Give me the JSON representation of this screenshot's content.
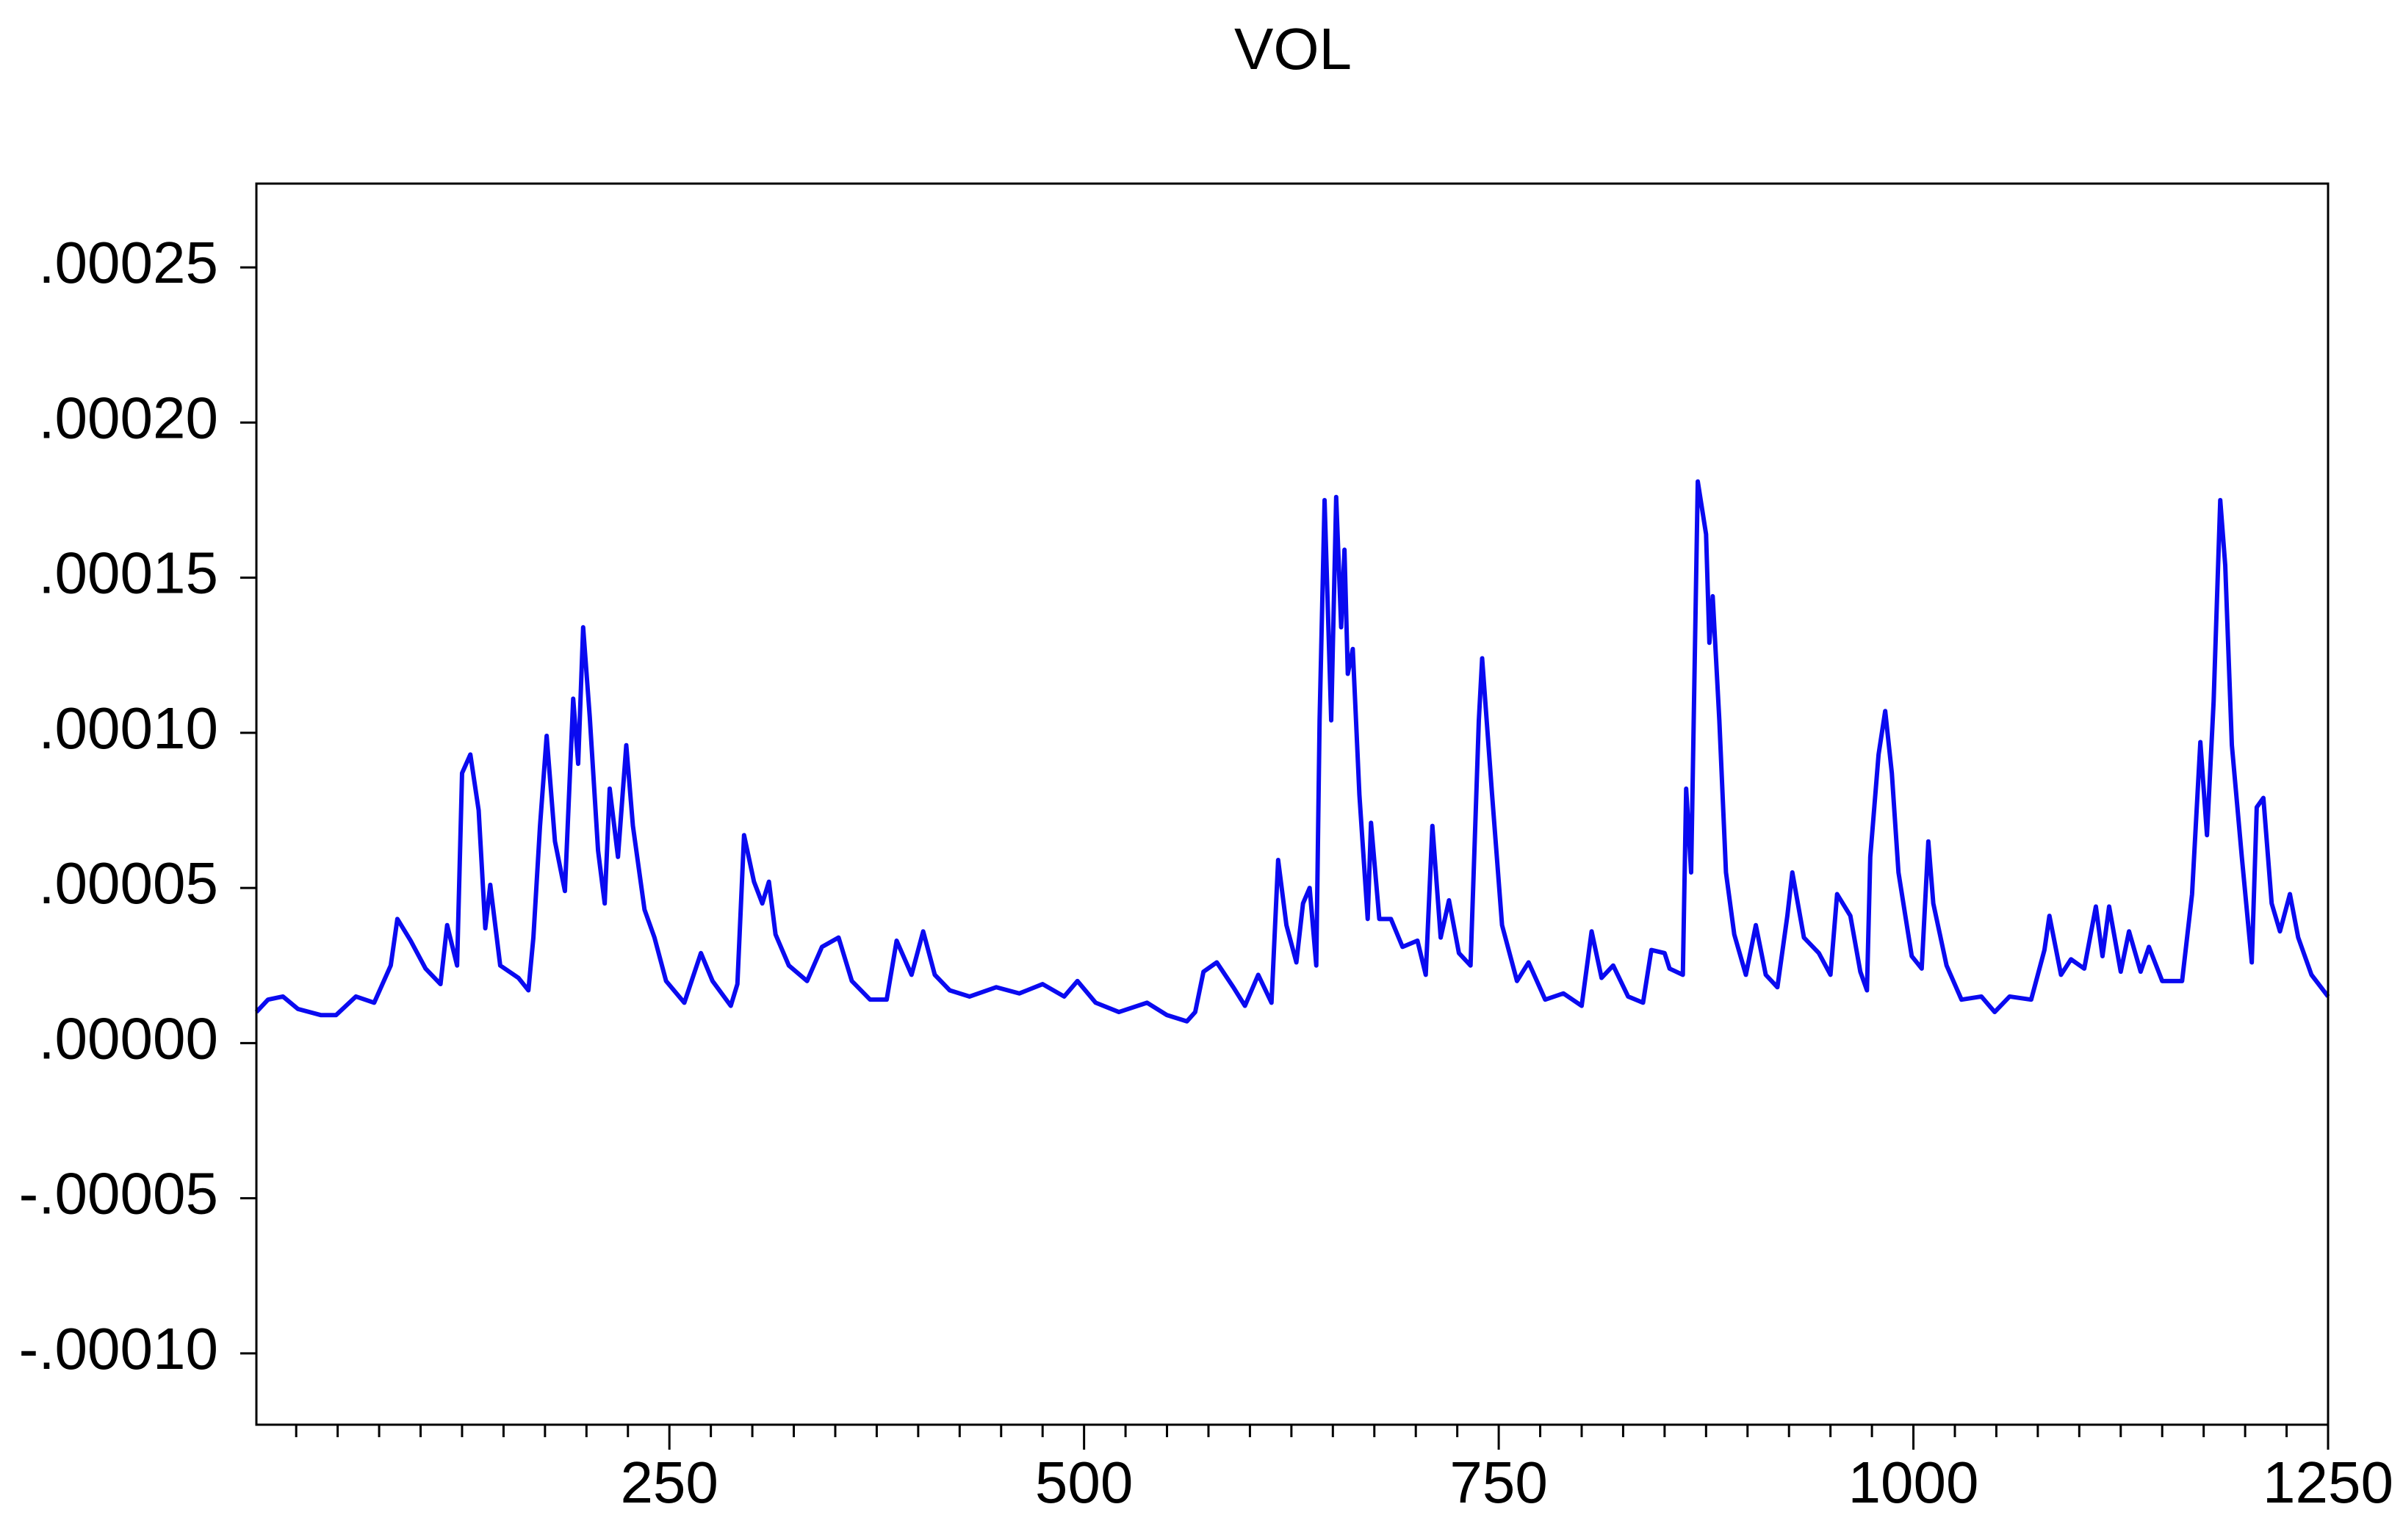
{
  "chart_data": {
    "type": "line",
    "title": "VOL",
    "x": [
      1,
      8,
      17,
      26,
      40,
      49,
      61,
      72,
      82,
      86,
      94,
      103,
      112,
      116,
      122,
      125,
      130,
      135,
      139,
      142,
      148,
      159,
      165,
      168,
      172,
      176,
      181,
      187,
      192,
      195,
      198,
      202,
      207,
      211,
      214,
      219,
      224,
      228,
      235,
      241,
      248,
      259,
      269,
      276,
      287,
      291,
      295,
      301,
      306,
      310,
      314,
      322,
      333,
      342,
      352,
      360,
      371,
      381,
      387,
      396,
      403,
      410,
      419,
      431,
      447,
      461,
      475,
      488,
      496,
      507,
      521,
      538,
      550,
      562,
      567,
      572,
      580,
      590,
      597,
      605,
      613,
      617,
      622,
      628,
      632,
      636,
      640,
      642,
      645,
      649,
      652,
      655,
      657,
      659,
      662,
      666,
      671,
      673,
      678,
      685,
      692,
      701,
      706,
      710,
      715,
      720,
      726,
      733,
      738,
      740,
      746,
      752,
      761,
      768,
      778,
      789,
      800,
      806,
      812,
      819,
      828,
      837,
      842,
      850,
      853,
      861,
      863,
      866,
      870,
      875,
      877,
      879,
      883,
      887,
      892,
      899,
      905,
      911,
      918,
      924,
      927,
      934,
      943,
      950,
      954,
      962,
      968,
      972,
      974,
      979,
      983,
      987,
      991,
      999,
      1005,
      1009,
      1012,
      1020,
      1029,
      1041,
      1049,
      1058,
      1071,
      1079,
      1082,
      1089,
      1095,
      1103,
      1110,
      1114,
      1118,
      1125,
      1130,
      1137,
      1142,
      1150,
      1162,
      1168,
      1173,
      1177,
      1181,
      1185,
      1188,
      1192,
      1198,
      1204,
      1207,
      1211,
      1216,
      1221,
      1227,
      1232,
      1240,
      1250
    ],
    "series": [
      {
        "name": "VOL",
        "color": "#0a0af0",
        "values": [
          1e-05,
          1.4e-05,
          1.5e-05,
          1.1e-05,
          9e-06,
          9e-06,
          1.5e-05,
          1.3e-05,
          2.5e-05,
          4e-05,
          3.3e-05,
          2.4e-05,
          1.9e-05,
          3.8e-05,
          2.5e-05,
          8.7e-05,
          9.3e-05,
          7.5e-05,
          3.7e-05,
          5.1e-05,
          2.5e-05,
          2.1e-05,
          1.7e-05,
          3.4e-05,
          7e-05,
          9.9e-05,
          6.5e-05,
          4.9e-05,
          0.000111,
          9e-05,
          0.000134,
          0.000105,
          6.2e-05,
          4.5e-05,
          8.2e-05,
          6e-05,
          9.6e-05,
          7e-05,
          4.3e-05,
          3.4e-05,
          2e-05,
          1.3e-05,
          2.9e-05,
          2e-05,
          1.2e-05,
          1.9e-05,
          6.7e-05,
          5.2e-05,
          4.5e-05,
          5.2e-05,
          3.5e-05,
          2.5e-05,
          2e-05,
          3.1e-05,
          3.4e-05,
          2e-05,
          1.4e-05,
          1.4e-05,
          3.3e-05,
          2.2e-05,
          3.6e-05,
          2.2e-05,
          1.7e-05,
          1.5e-05,
          1.8e-05,
          1.6e-05,
          1.9e-05,
          1.5e-05,
          2e-05,
          1.3e-05,
          1e-05,
          1.3e-05,
          9e-06,
          7e-06,
          1e-05,
          2.3e-05,
          2.6e-05,
          1.8e-05,
          1.2e-05,
          2.2e-05,
          1.3e-05,
          5.9e-05,
          3.8e-05,
          2.6e-05,
          4.5e-05,
          5e-05,
          2.5e-05,
          0.000104,
          0.000175,
          0.000104,
          0.000176,
          0.000134,
          0.000159,
          0.000119,
          0.000127,
          8e-05,
          4e-05,
          7.1e-05,
          4e-05,
          4e-05,
          3.1e-05,
          3.3e-05,
          2.2e-05,
          7e-05,
          3.4e-05,
          4.6e-05,
          2.9e-05,
          2.5e-05,
          0.000104,
          0.000124,
          8e-05,
          3.8e-05,
          2e-05,
          2.6e-05,
          1.4e-05,
          1.6e-05,
          1.2e-05,
          3.6e-05,
          2.1e-05,
          2.5e-05,
          1.5e-05,
          1.3e-05,
          3e-05,
          2.9e-05,
          2.4e-05,
          2.2e-05,
          8.2e-05,
          5.5e-05,
          0.000181,
          0.000164,
          0.000129,
          0.000144,
          0.000104,
          5.5e-05,
          3.5e-05,
          2.2e-05,
          3.8e-05,
          2.2e-05,
          1.8e-05,
          4.1e-05,
          5.5e-05,
          3.4e-05,
          2.9e-05,
          2.2e-05,
          4.8e-05,
          4.1e-05,
          2.3e-05,
          1.7e-05,
          6e-05,
          9.3e-05,
          0.000107,
          8.7e-05,
          5.5e-05,
          2.8e-05,
          2.4e-05,
          6.5e-05,
          4.5e-05,
          2.5e-05,
          1.4e-05,
          1.5e-05,
          1e-05,
          1.5e-05,
          1.4e-05,
          3e-05,
          4.1e-05,
          2.2e-05,
          2.7e-05,
          2.4e-05,
          4.4e-05,
          2.8e-05,
          4.4e-05,
          2.3e-05,
          3.6e-05,
          2.3e-05,
          3.1e-05,
          2e-05,
          2e-05,
          4.8e-05,
          9.7e-05,
          6.7e-05,
          0.00011,
          0.000175,
          0.000154,
          9.6e-05,
          6e-05,
          2.6e-05,
          7.6e-05,
          7.9e-05,
          4.5e-05,
          3.6e-05,
          4.8e-05,
          3.4e-05,
          2.2e-05,
          1.5e-05
        ]
      }
    ],
    "xlim": [
      1,
      1250
    ],
    "xticks": [
      250,
      500,
      750,
      1000,
      1250
    ],
    "xminorticks": [
      25,
      50,
      75,
      100,
      125,
      150,
      175,
      200,
      225,
      275,
      300,
      325,
      350,
      375,
      400,
      425,
      450,
      475,
      525,
      550,
      575,
      600,
      625,
      650,
      675,
      700,
      725,
      775,
      800,
      825,
      850,
      875,
      900,
      925,
      950,
      975,
      1025,
      1050,
      1075,
      1100,
      1125,
      1150,
      1175,
      1200,
      1225
    ],
    "ylim": [
      -0.000123,
      0.000277
    ],
    "yticks": [
      {
        "value": -0.0001,
        "label": "-.00010"
      },
      {
        "value": -5e-05,
        "label": "-.00005"
      },
      {
        "value": 0,
        "label": ".00000"
      },
      {
        "value": 5e-05,
        "label": ".00005"
      },
      {
        "value": 0.0001,
        "label": ".00010"
      },
      {
        "value": 0.00015,
        "label": ".00015"
      },
      {
        "value": 0.0002,
        "label": ".00020"
      },
      {
        "value": 0.00025,
        "label": ".00025"
      }
    ],
    "grid": false
  }
}
